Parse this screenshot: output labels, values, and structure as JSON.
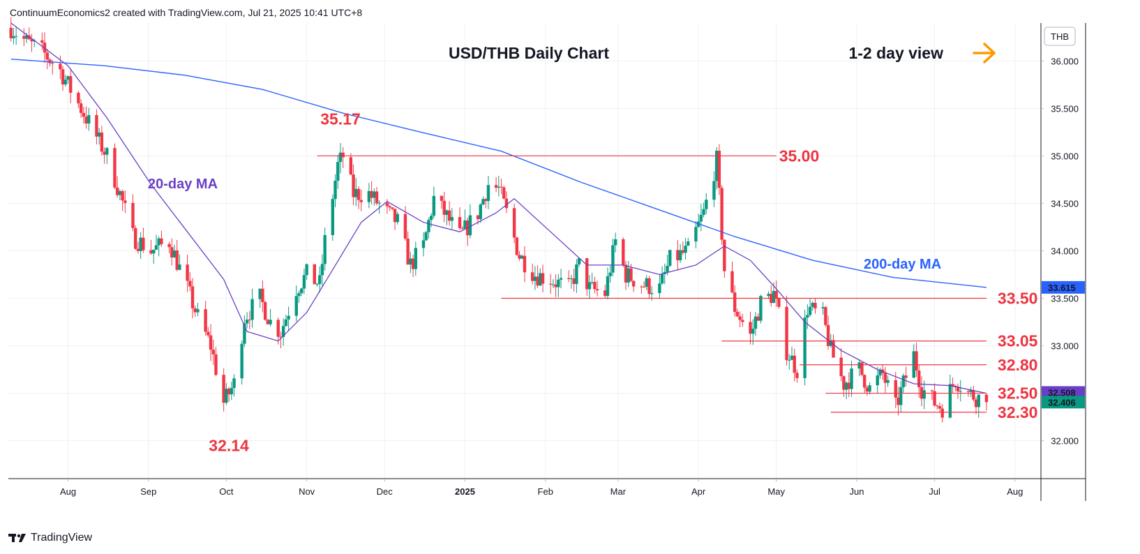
{
  "header": {
    "attribution": "ContinuumEconomics2 created with TradingView.com, Jul 21, 2025 10:41 UTC+8"
  },
  "footer": {
    "brand": "TradingView"
  },
  "colors": {
    "up": "#089981",
    "down": "#f23645",
    "ma20": "#6a3fc7",
    "ma200": "#2962ff",
    "level": "#ee3440",
    "arrow": "#ff9800",
    "grid": "#eef0f3"
  },
  "chart_data": {
    "type": "candlestick",
    "title": "USD/THB Daily Chart",
    "view": "1-2 day view",
    "view_icon": "arrow-right-icon",
    "currency": "THB",
    "ylim": [
      31.6,
      36.4
    ],
    "yticks": [
      "32.000",
      "32.500",
      "33.000",
      "33.500",
      "34.000",
      "34.500",
      "35.000",
      "35.500",
      "36.000"
    ],
    "xticks": [
      {
        "date": "2024-08-01",
        "label": "Aug"
      },
      {
        "date": "2024-09-01",
        "label": "Sep"
      },
      {
        "date": "2024-10-01",
        "label": "Oct"
      },
      {
        "date": "2024-11-01",
        "label": "Nov"
      },
      {
        "date": "2024-12-01",
        "label": "Dec"
      },
      {
        "date": "2025-01-01",
        "label": "2025"
      },
      {
        "date": "2025-02-01",
        "label": "Feb"
      },
      {
        "date": "2025-03-01",
        "label": "Mar"
      },
      {
        "date": "2025-04-01",
        "label": "Apr"
      },
      {
        "date": "2025-05-01",
        "label": "May"
      },
      {
        "date": "2025-06-01",
        "label": "Jun"
      },
      {
        "date": "2025-07-01",
        "label": "Jul"
      },
      {
        "date": "2025-08-01",
        "label": "Aug"
      }
    ],
    "keypoints": [
      [
        "2024-07-10",
        36.35
      ],
      [
        "2024-07-16",
        36.2
      ],
      [
        "2024-07-22",
        36.1
      ],
      [
        "2024-07-29",
        35.9
      ],
      [
        "2024-08-05",
        35.55
      ],
      [
        "2024-08-12",
        35.2
      ],
      [
        "2024-08-16",
        35.0
      ],
      [
        "2024-08-21",
        34.6
      ],
      [
        "2024-08-26",
        34.15
      ],
      [
        "2024-09-02",
        34.0
      ],
      [
        "2024-09-09",
        34.1
      ],
      [
        "2024-09-16",
        33.6
      ],
      [
        "2024-09-20",
        33.3
      ],
      [
        "2024-09-25",
        33.0
      ],
      [
        "2024-09-30",
        32.4
      ],
      [
        "2024-10-04",
        32.6
      ],
      [
        "2024-10-08",
        33.3
      ],
      [
        "2024-10-14",
        33.5
      ],
      [
        "2024-10-18",
        33.25
      ],
      [
        "2024-10-22",
        33.15
      ],
      [
        "2024-10-28",
        33.6
      ],
      [
        "2024-11-01",
        33.75
      ],
      [
        "2024-11-06",
        33.65
      ],
      [
        "2024-11-08",
        34.1
      ],
      [
        "2024-11-13",
        34.9
      ],
      [
        "2024-11-15",
        35.0
      ],
      [
        "2024-11-19",
        34.6
      ],
      [
        "2024-11-25",
        34.6
      ],
      [
        "2024-12-02",
        34.4
      ],
      [
        "2024-12-06",
        34.3
      ],
      [
        "2024-12-11",
        33.85
      ],
      [
        "2024-12-16",
        34.05
      ],
      [
        "2024-12-20",
        34.55
      ],
      [
        "2024-12-24",
        34.4
      ],
      [
        "2024-12-30",
        34.15
      ],
      [
        "2025-01-06",
        34.4
      ],
      [
        "2025-01-10",
        34.7
      ],
      [
        "2025-01-14",
        34.65
      ],
      [
        "2025-01-17",
        34.4
      ],
      [
        "2025-01-22",
        33.95
      ],
      [
        "2025-01-28",
        33.75
      ],
      [
        "2025-02-03",
        33.7
      ],
      [
        "2025-02-10",
        33.6
      ],
      [
        "2025-02-14",
        33.85
      ],
      [
        "2025-02-18",
        33.6
      ],
      [
        "2025-02-24",
        33.55
      ],
      [
        "2025-02-28",
        34.1
      ],
      [
        "2025-03-04",
        33.75
      ],
      [
        "2025-03-10",
        33.65
      ],
      [
        "2025-03-17",
        33.6
      ],
      [
        "2025-03-21",
        33.9
      ],
      [
        "2025-03-28",
        34.0
      ],
      [
        "2025-04-03",
        34.4
      ],
      [
        "2025-04-08",
        34.95
      ],
      [
        "2025-04-11",
        33.8
      ],
      [
        "2025-04-15",
        33.4
      ],
      [
        "2025-04-21",
        33.1
      ],
      [
        "2025-04-25",
        33.45
      ],
      [
        "2025-04-30",
        33.55
      ],
      [
        "2025-05-05",
        32.95
      ],
      [
        "2025-05-09",
        32.75
      ],
      [
        "2025-05-13",
        33.4
      ],
      [
        "2025-05-19",
        33.3
      ],
      [
        "2025-05-22",
        32.95
      ],
      [
        "2025-05-27",
        32.6
      ],
      [
        "2025-06-02",
        32.75
      ],
      [
        "2025-06-06",
        32.55
      ],
      [
        "2025-06-11",
        32.7
      ],
      [
        "2025-06-16",
        32.35
      ],
      [
        "2025-06-19",
        32.6
      ],
      [
        "2025-06-23",
        32.9
      ],
      [
        "2025-06-26",
        32.55
      ],
      [
        "2025-07-01",
        32.4
      ],
      [
        "2025-07-04",
        32.35
      ],
      [
        "2025-07-09",
        32.65
      ],
      [
        "2025-07-14",
        32.5
      ],
      [
        "2025-07-18",
        32.45
      ],
      [
        "2025-07-21",
        32.406
      ]
    ],
    "ma20": [
      [
        "2024-07-10",
        36.4
      ],
      [
        "2024-08-01",
        35.95
      ],
      [
        "2024-08-16",
        35.4
      ],
      [
        "2024-09-02",
        34.7
      ],
      [
        "2024-09-16",
        34.2
      ],
      [
        "2024-09-30",
        33.7
      ],
      [
        "2024-10-09",
        33.15
      ],
      [
        "2024-10-21",
        33.05
      ],
      [
        "2024-11-01",
        33.35
      ],
      [
        "2024-11-11",
        33.8
      ],
      [
        "2024-11-22",
        34.3
      ],
      [
        "2024-12-02",
        34.52
      ],
      [
        "2024-12-16",
        34.3
      ],
      [
        "2024-12-30",
        34.2
      ],
      [
        "2025-01-13",
        34.4
      ],
      [
        "2025-01-20",
        34.55
      ],
      [
        "2025-02-03",
        34.2
      ],
      [
        "2025-02-17",
        33.85
      ],
      [
        "2025-03-03",
        33.85
      ],
      [
        "2025-03-17",
        33.75
      ],
      [
        "2025-03-31",
        33.85
      ],
      [
        "2025-04-11",
        34.05
      ],
      [
        "2025-04-21",
        33.9
      ],
      [
        "2025-05-01",
        33.6
      ],
      [
        "2025-05-12",
        33.25
      ],
      [
        "2025-05-26",
        32.95
      ],
      [
        "2025-06-09",
        32.75
      ],
      [
        "2025-06-23",
        32.6
      ],
      [
        "2025-07-07",
        32.58
      ],
      [
        "2025-07-21",
        32.5
      ]
    ],
    "ma200": [
      [
        "2024-07-10",
        36.02
      ],
      [
        "2024-08-15",
        35.95
      ],
      [
        "2024-09-15",
        35.85
      ],
      [
        "2024-10-15",
        35.7
      ],
      [
        "2024-11-15",
        35.45
      ],
      [
        "2024-12-15",
        35.25
      ],
      [
        "2025-01-15",
        35.05
      ],
      [
        "2025-02-15",
        34.72
      ],
      [
        "2025-03-15",
        34.45
      ],
      [
        "2025-04-15",
        34.15
      ],
      [
        "2025-05-15",
        33.9
      ],
      [
        "2025-06-15",
        33.72
      ],
      [
        "2025-07-21",
        33.615
      ]
    ],
    "levels": [
      {
        "label": "35.00",
        "value": 35.0,
        "from": "2024-11-05",
        "to": "2025-05-01"
      },
      {
        "label": "33.50",
        "value": 33.5,
        "from": "2025-01-15",
        "to": "2025-07-21"
      },
      {
        "label": "33.05",
        "value": 33.05,
        "from": "2025-04-10",
        "to": "2025-07-21"
      },
      {
        "label": "32.80",
        "value": 32.8,
        "from": "2025-05-10",
        "to": "2025-07-21"
      },
      {
        "label": "32.50",
        "value": 32.5,
        "from": "2025-05-20",
        "to": "2025-07-21"
      },
      {
        "label": "32.30",
        "value": 32.3,
        "from": "2025-05-22",
        "to": "2025-07-21"
      }
    ],
    "annotations": [
      {
        "text": "35.17",
        "date": "2024-11-14",
        "value": 35.17
      },
      {
        "text": "32.14",
        "date": "2024-10-02",
        "value": 32.14
      }
    ],
    "ma_labels": {
      "ma20": "20-day MA",
      "ma200": "200-day MA"
    },
    "last_values": {
      "ma20": "32.508",
      "close": "32.406",
      "ma200": "33.615"
    }
  }
}
